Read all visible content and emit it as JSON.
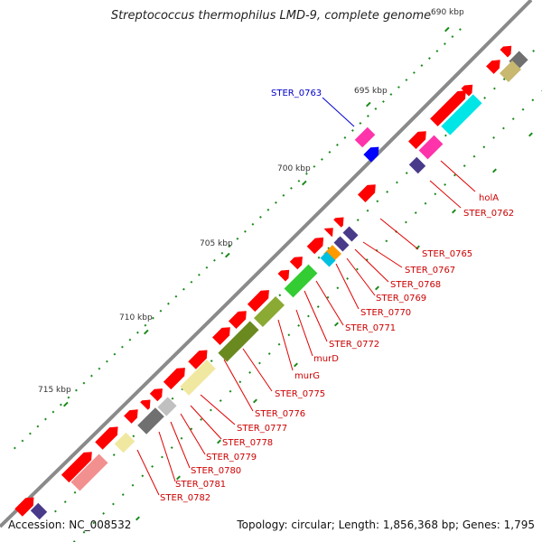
{
  "title": "Streptococcus thermophilus LMD-9, complete genome",
  "footer": {
    "accession": "Accession: NC_008532",
    "summary": "Topology: circular; Length: 1,856,368 bp; Genes: 1,795"
  },
  "ticks": [
    {
      "label": "690 kbp"
    },
    {
      "label": "695 kbp"
    },
    {
      "label": "700 kbp"
    },
    {
      "label": "705 kbp"
    },
    {
      "label": "710 kbp"
    },
    {
      "label": "715 kbp"
    }
  ],
  "labels": [
    {
      "text": "STER_0763",
      "color": "#0000cc"
    },
    {
      "text": "holA",
      "color": "#cc0000"
    },
    {
      "text": "STER_0762",
      "color": "#cc0000"
    },
    {
      "text": "STER_0765",
      "color": "#cc0000"
    },
    {
      "text": "STER_0767",
      "color": "#cc0000"
    },
    {
      "text": "STER_0768",
      "color": "#cc0000"
    },
    {
      "text": "STER_0769",
      "color": "#cc0000"
    },
    {
      "text": "STER_0770",
      "color": "#cc0000"
    },
    {
      "text": "STER_0771",
      "color": "#cc0000"
    },
    {
      "text": "STER_0772",
      "color": "#cc0000"
    },
    {
      "text": "murD",
      "color": "#cc0000"
    },
    {
      "text": "murG",
      "color": "#cc0000"
    },
    {
      "text": "STER_0775",
      "color": "#cc0000"
    },
    {
      "text": "STER_0776",
      "color": "#cc0000"
    },
    {
      "text": "STER_0777",
      "color": "#cc0000"
    },
    {
      "text": "STER_0778",
      "color": "#cc0000"
    },
    {
      "text": "STER_0779",
      "color": "#cc0000"
    },
    {
      "text": "STER_0780",
      "color": "#cc0000"
    },
    {
      "text": "STER_0781",
      "color": "#cc0000"
    },
    {
      "text": "STER_0782",
      "color": "#cc0000"
    }
  ],
  "colors": {
    "backbone": "#8a8a8a",
    "gene_red": "#ff0000",
    "tick_green": "#1a8a1a"
  }
}
